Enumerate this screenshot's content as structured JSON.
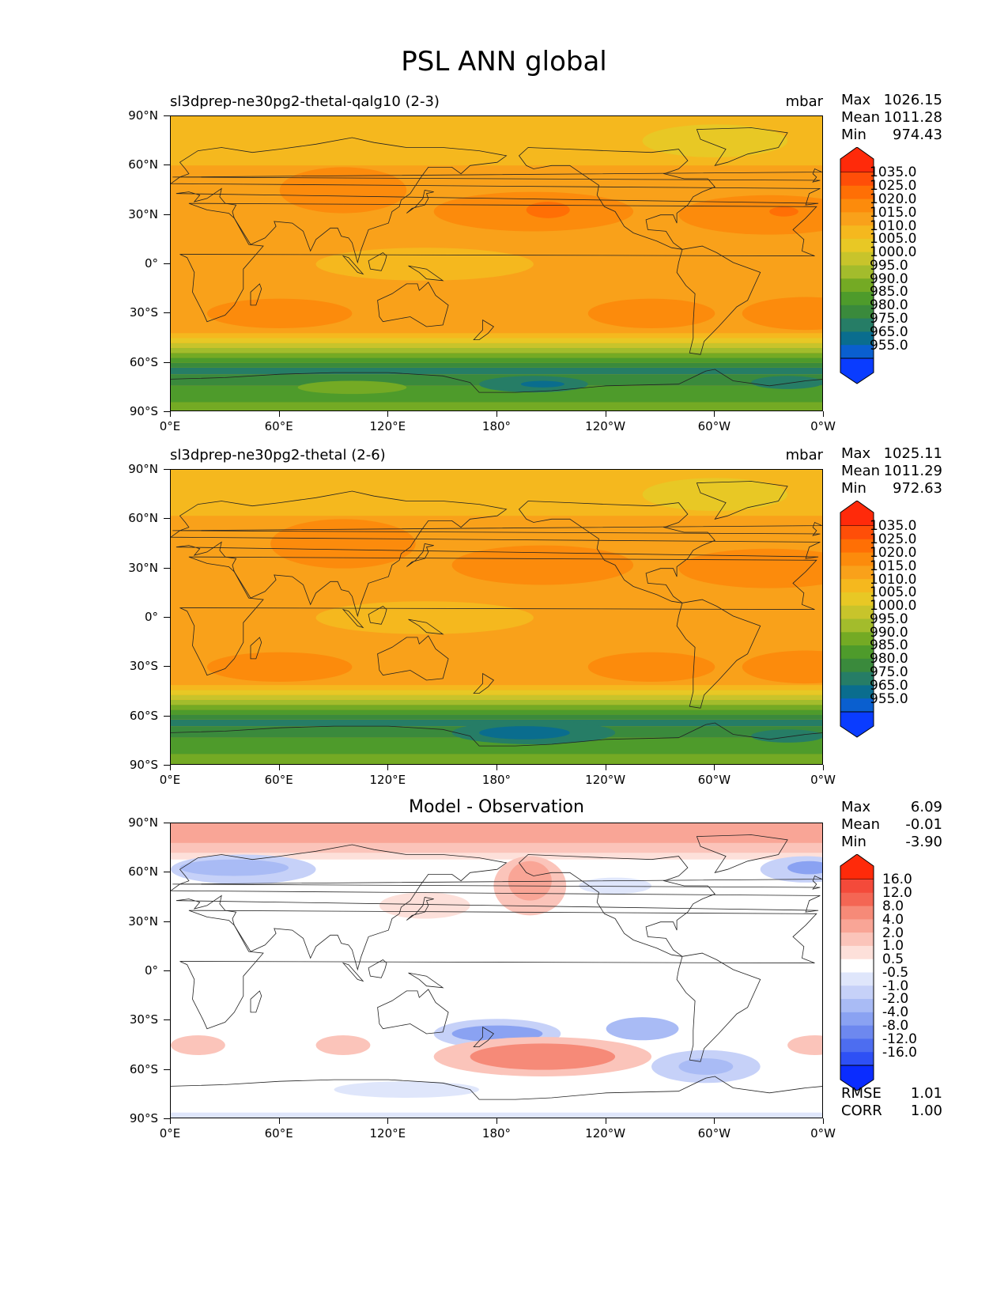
{
  "title": "PSL ANN global",
  "lat_labels": [
    "90°N",
    "60°N",
    "30°N",
    "0°",
    "30°S",
    "60°S",
    "90°S"
  ],
  "lon_labels": [
    "0°E",
    "60°E",
    "120°E",
    "180°",
    "120°W",
    "60°W",
    "0°W"
  ],
  "panels": [
    {
      "title": "sl3dprep-ne30pg2-thetal-qalg10 (2-3)",
      "units": "mbar",
      "stats": [
        {
          "label": "Max",
          "value": "1026.15"
        },
        {
          "label": "Mean",
          "value": "1011.28"
        },
        {
          "label": "Min",
          "value": "974.43"
        }
      ],
      "colorbar": {
        "labels": [
          "1035.0",
          "1025.0",
          "1020.0",
          "1015.0",
          "1010.0",
          "1005.0",
          "1000.0",
          "995.0",
          "990.0",
          "985.0",
          "980.0",
          "975.0",
          "965.0",
          "955.0"
        ],
        "colors": [
          "#ff2a0a",
          "#ff4e08",
          "#ff6f05",
          "#fc8b0c",
          "#f9a11a",
          "#f5b81e",
          "#e8c825",
          "#c8c42b",
          "#a3bc2c",
          "#74aa24",
          "#4e9b2b",
          "#3a8a3c",
          "#267d66",
          "#0a6d8e",
          "#0a5fcf",
          "#0a3cff"
        ]
      }
    },
    {
      "title": "sl3dprep-ne30pg2-thetal (2-6)",
      "units": "mbar",
      "stats": [
        {
          "label": "Max",
          "value": "1025.11"
        },
        {
          "label": "Mean",
          "value": "1011.29"
        },
        {
          "label": "Min",
          "value": "972.63"
        }
      ],
      "colorbar": {
        "labels": [
          "1035.0",
          "1025.0",
          "1020.0",
          "1015.0",
          "1010.0",
          "1005.0",
          "1000.0",
          "995.0",
          "990.0",
          "985.0",
          "980.0",
          "975.0",
          "965.0",
          "955.0"
        ],
        "colors": [
          "#ff2a0a",
          "#ff4e08",
          "#ff6f05",
          "#fc8b0c",
          "#f9a11a",
          "#f5b81e",
          "#e8c825",
          "#c8c42b",
          "#a3bc2c",
          "#74aa24",
          "#4e9b2b",
          "#3a8a3c",
          "#267d66",
          "#0a6d8e",
          "#0a5fcf",
          "#0a3cff"
        ]
      }
    },
    {
      "title": "Model - Observation",
      "stats": [
        {
          "label": "Max",
          "value": "6.09"
        },
        {
          "label": "Mean",
          "value": "-0.01"
        },
        {
          "label": "Min",
          "value": "-3.90"
        }
      ],
      "colorbar": {
        "labels": [
          "16.0",
          "12.0",
          "8.0",
          "4.0",
          "2.0",
          "1.0",
          "0.5",
          "-0.5",
          "-1.0",
          "-2.0",
          "-4.0",
          "-8.0",
          "-12.0",
          "-16.0"
        ],
        "colors": [
          "#ff2a0a",
          "#f44a3a",
          "#f46654",
          "#f68a78",
          "#f9a596",
          "#fbc4ba",
          "#fde0da",
          "#ffffff",
          "#dfe6fb",
          "#c6d1f8",
          "#a9bbf5",
          "#8aa2f2",
          "#6d88ef",
          "#4d6df0",
          "#2e50f5",
          "#0a2cff"
        ]
      },
      "metrics": [
        {
          "label": "RMSE",
          "value": "1.01"
        },
        {
          "label": "CORR",
          "value": "1.00"
        }
      ]
    }
  ]
}
